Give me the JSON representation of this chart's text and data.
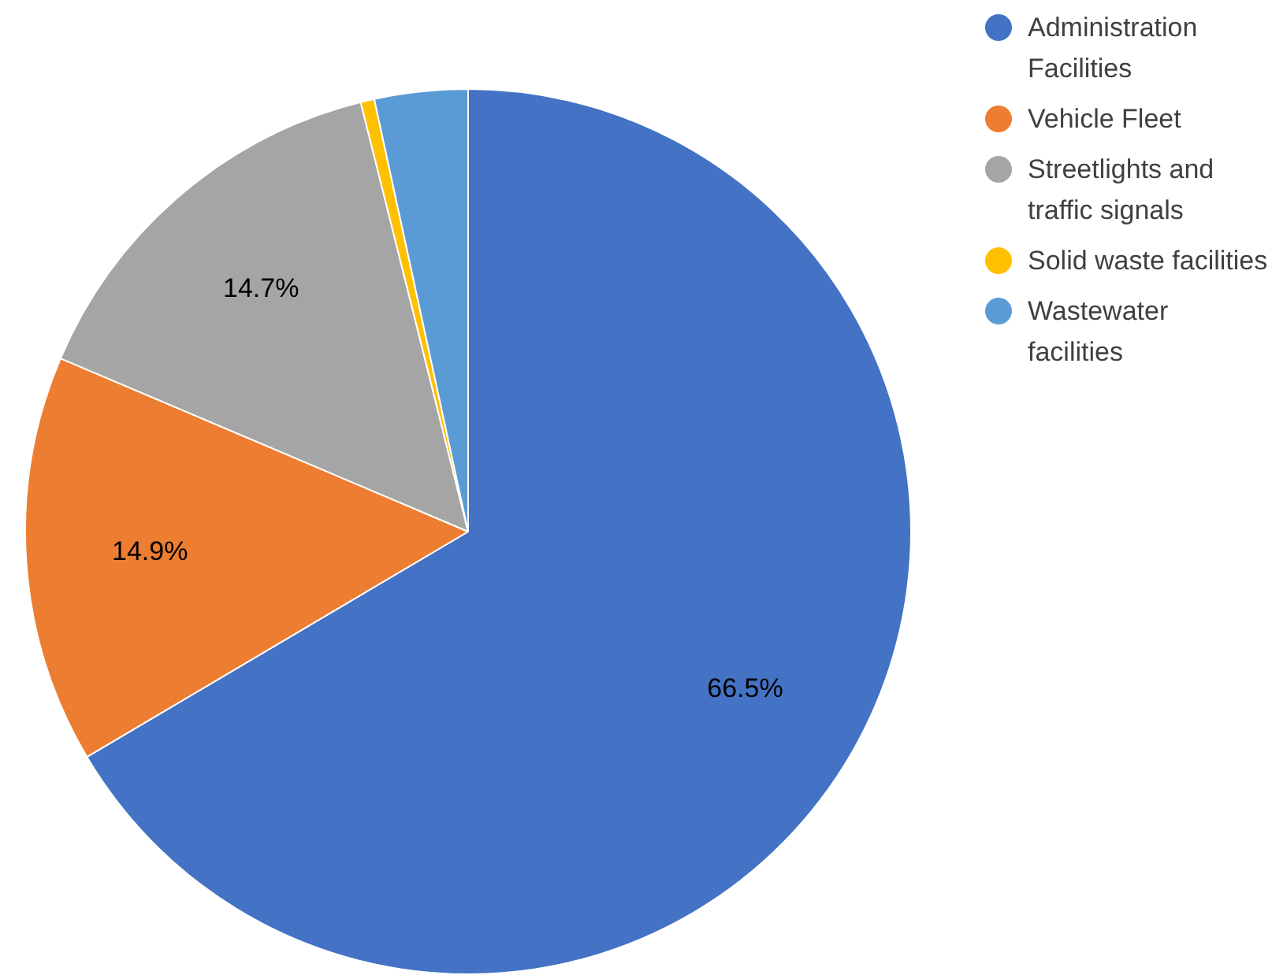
{
  "chart_data": {
    "type": "pie",
    "categories": [
      "Administration Facilities",
      "Vehicle Fleet",
      "Streetlights and traffic signals",
      "Solid waste facilities",
      "Wastewater facilities"
    ],
    "values": [
      66.5,
      14.9,
      14.7,
      0.5,
      3.4
    ],
    "colors": [
      "#4472c4",
      "#ed7d31",
      "#a5a5a5",
      "#ffc000",
      "#5b9bd5"
    ],
    "value_labels": [
      "66.5%",
      "14.9%",
      "14.7%",
      null,
      null
    ],
    "legend": "top right"
  }
}
